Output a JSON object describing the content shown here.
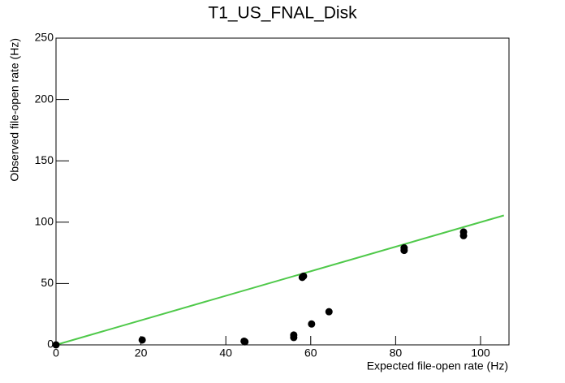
{
  "chart_data": {
    "type": "scatter",
    "title": "T1_US_FNAL_Disk",
    "x_label": "Expected file-open rate (Hz)",
    "y_label": "Observed file-open rate (Hz)",
    "x": [
      0,
      20.3,
      44.3,
      44.5,
      56,
      56,
      58,
      58.3,
      60.2,
      64.3,
      82,
      82,
      96,
      96
    ],
    "values": [
      0,
      4,
      3,
      2.5,
      6,
      8,
      55,
      56,
      17,
      27,
      77,
      79,
      89,
      92
    ],
    "color": "#000000",
    "reference_line": {
      "x": [
        0,
        105.5
      ],
      "values": [
        0,
        105.5
      ],
      "color": "#4fc94a"
    },
    "xlim": [
      0,
      106.7
    ],
    "ylim": [
      0,
      250
    ],
    "xticks": [
      0,
      20,
      40,
      60,
      80,
      100
    ],
    "yticks": [
      0,
      50,
      100,
      150,
      200,
      250
    ]
  }
}
